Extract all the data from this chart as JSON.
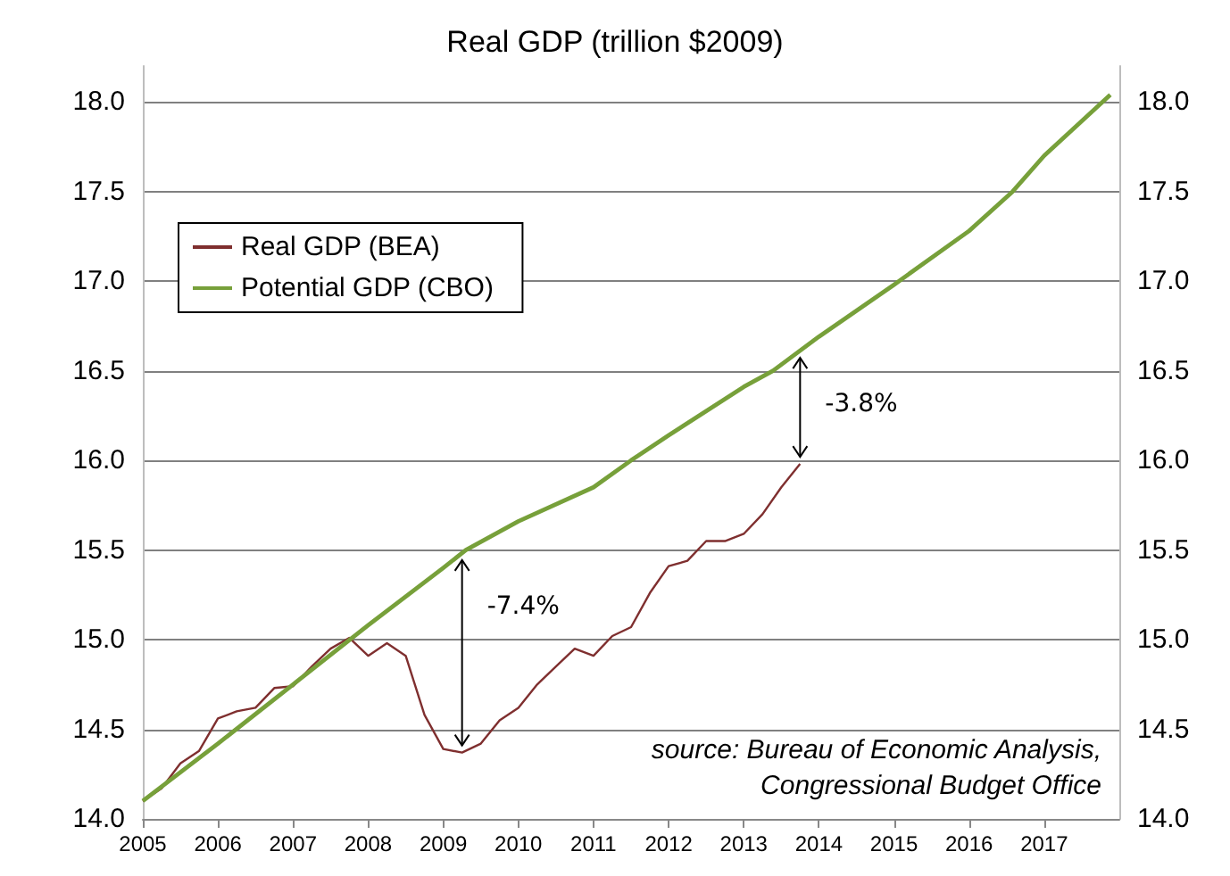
{
  "chart_data": {
    "type": "line",
    "title": "Real GDP (trillion $2009)",
    "legend": "top left",
    "grid": "y",
    "line_style": "solid",
    "marker": "none",
    "xlim": [
      2005,
      2018
    ],
    "xticks": [
      2005,
      2006,
      2007,
      2008,
      2009,
      2010,
      2011,
      2012,
      2013,
      2014,
      2015,
      2016,
      2017
    ],
    "ylim": [
      14.0,
      18.2
    ],
    "yticks": [
      {
        "value": 14.0,
        "label": "14.0"
      },
      {
        "value": 14.5,
        "label": "14.5"
      },
      {
        "value": 15.0,
        "label": "15.0"
      },
      {
        "value": 15.5,
        "label": "15.5"
      },
      {
        "value": 16.0,
        "label": "16.0"
      },
      {
        "value": 16.5,
        "label": "16.5"
      },
      {
        "value": 17.0,
        "label": "17.0"
      },
      {
        "value": 17.5,
        "label": "17.5"
      },
      {
        "value": 18.0,
        "label": "18.0"
      }
    ],
    "y2lim": [
      14.0,
      18.2
    ],
    "y2ticks": [
      {
        "value": 14.0,
        "label": "14.0"
      },
      {
        "value": 14.5,
        "label": "14.5"
      },
      {
        "value": 15.0,
        "label": "15.0"
      },
      {
        "value": 15.5,
        "label": "15.5"
      },
      {
        "value": 16.0,
        "label": "16.0"
      },
      {
        "value": 16.5,
        "label": "16.5"
      },
      {
        "value": 17.0,
        "label": "17.0"
      },
      {
        "value": 17.5,
        "label": "17.5"
      },
      {
        "value": 18.0,
        "label": "18.0"
      }
    ],
    "series": [
      {
        "name": "Real GDP (BEA)",
        "color": "#7f2f2f",
        "x": [
          2005,
          2005.25,
          2005.5,
          2005.75,
          2006,
          2006.25,
          2006.5,
          2006.75,
          2007,
          2007.25,
          2007.5,
          2007.75,
          2008,
          2008.25,
          2008.5,
          2008.75,
          2009,
          2009.25,
          2009.5,
          2009.75,
          2010,
          2010.25,
          2010.5,
          2010.75,
          2011,
          2011.25,
          2011.5,
          2011.75,
          2012,
          2012.25,
          2012.5,
          2012.75,
          2013,
          2013.25,
          2013.5,
          2013.75
        ],
        "values": [
          14.1,
          14.17,
          14.31,
          14.38,
          14.56,
          14.6,
          14.62,
          14.73,
          14.74,
          14.85,
          14.95,
          15.01,
          14.91,
          14.98,
          14.91,
          14.58,
          14.39,
          14.37,
          14.42,
          14.55,
          14.62,
          14.75,
          14.85,
          14.95,
          14.91,
          15.02,
          15.07,
          15.26,
          15.41,
          15.44,
          15.55,
          15.55,
          15.59,
          15.7,
          15.85,
          15.98
        ]
      },
      {
        "name": "Potential GDP (CBO)",
        "color": "#77a03a",
        "x": [
          2005,
          2006,
          2007,
          2008,
          2009,
          2009.3,
          2010,
          2011,
          2011.5,
          2012,
          2013,
          2013.39,
          2014,
          2015,
          2016,
          2016.58,
          2017,
          2017.88
        ],
        "values": [
          14.1,
          14.42,
          14.75,
          15.08,
          15.4,
          15.5,
          15.66,
          15.85,
          16.0,
          16.14,
          16.41,
          16.5,
          16.69,
          16.98,
          17.28,
          17.5,
          17.7,
          18.04
        ]
      }
    ],
    "annotations": [
      {
        "text": "-7.4%",
        "x": 2009.25,
        "y": 15.48
      },
      {
        "text": "-3.8%",
        "x": 2013.75,
        "y": 16.61
      },
      "source: Bureau of Economic Analysis, Congressional Budget Office"
    ]
  }
}
